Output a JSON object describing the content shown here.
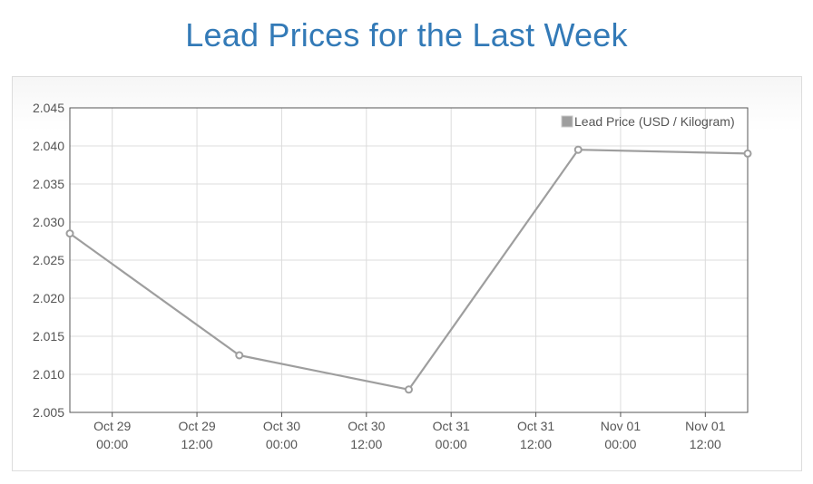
{
  "page": {
    "title": "Lead Prices for the Last Week"
  },
  "colors": {
    "title": "#337ab7",
    "series": "#9e9e9e",
    "grid": "#dcdcdc",
    "axis": "#555555"
  },
  "chart_data": {
    "type": "line",
    "title": "Lead Prices for the Last Week",
    "xlabel": "",
    "ylabel": "",
    "legend": "top-right",
    "grid": true,
    "ylim": [
      2.005,
      2.045
    ],
    "xlim": [
      "2021-10-28 18:00",
      "2021-11-01 18:00"
    ],
    "y_ticks": [
      "2.045",
      "2.040",
      "2.035",
      "2.030",
      "2.025",
      "2.020",
      "2.015",
      "2.010",
      "2.005"
    ],
    "x_ticks": [
      {
        "date": "Oct 29",
        "time": "00:00"
      },
      {
        "date": "Oct 29",
        "time": "12:00"
      },
      {
        "date": "Oct 30",
        "time": "00:00"
      },
      {
        "date": "Oct 30",
        "time": "12:00"
      },
      {
        "date": "Oct 31",
        "time": "00:00"
      },
      {
        "date": "Oct 31",
        "time": "12:00"
      },
      {
        "date": "Nov 01",
        "time": "00:00"
      },
      {
        "date": "Nov 01",
        "time": "12:00"
      }
    ],
    "series": [
      {
        "name": "Lead Price (USD / Kilogram)",
        "points": [
          {
            "x": "2021-10-28 18:00",
            "y": 2.0285
          },
          {
            "x": "2021-10-29 18:00",
            "y": 2.0125
          },
          {
            "x": "2021-10-30 18:00",
            "y": 2.008
          },
          {
            "x": "2021-10-31 18:00",
            "y": 2.0395
          },
          {
            "x": "2021-11-01 18:00",
            "y": 2.039
          }
        ]
      }
    ]
  }
}
